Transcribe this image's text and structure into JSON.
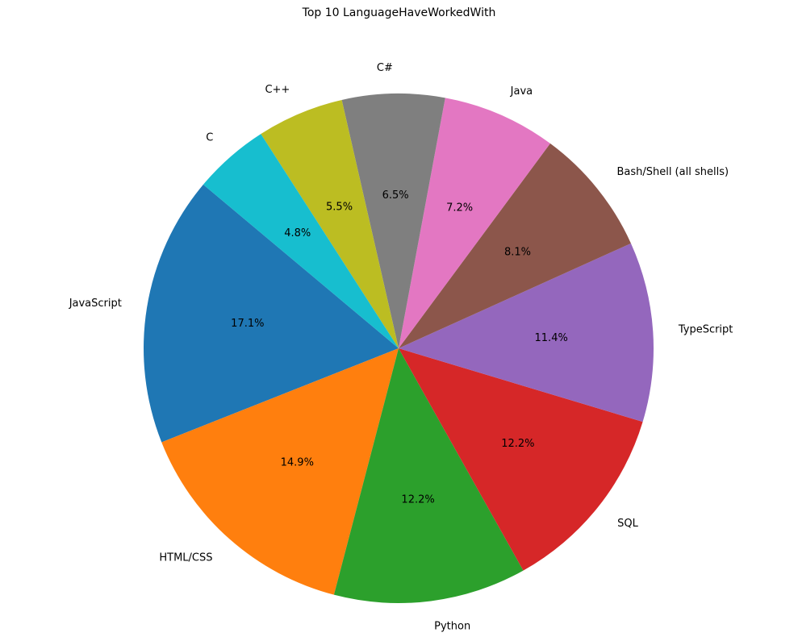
{
  "chart_data": {
    "type": "pie",
    "title": "Top 10 LanguageHaveWorkedWith",
    "start_angle_deg": 140,
    "direction": "counterclockwise",
    "slices": [
      {
        "label": "JavaScript",
        "value": 17.1,
        "pct_label": "17.1%",
        "color": "#1f77b4"
      },
      {
        "label": "HTML/CSS",
        "value": 14.9,
        "pct_label": "14.9%",
        "color": "#ff7f0e"
      },
      {
        "label": "Python",
        "value": 12.2,
        "pct_label": "12.2%",
        "color": "#2ca02c"
      },
      {
        "label": "SQL",
        "value": 12.2,
        "pct_label": "12.2%",
        "color": "#d62728"
      },
      {
        "label": "TypeScript",
        "value": 11.4,
        "pct_label": "11.4%",
        "color": "#9467bd"
      },
      {
        "label": "Bash/Shell (all shells)",
        "value": 8.1,
        "pct_label": "8.1%",
        "color": "#8c564b"
      },
      {
        "label": "Java",
        "value": 7.2,
        "pct_label": "7.2%",
        "color": "#e377c2"
      },
      {
        "label": "C#",
        "value": 6.5,
        "pct_label": "6.5%",
        "color": "#7f7f7f"
      },
      {
        "label": "C++",
        "value": 5.5,
        "pct_label": "5.5%",
        "color": "#bcbd22"
      },
      {
        "label": "C",
        "value": 4.8,
        "pct_label": "4.8%",
        "color": "#17becf"
      }
    ]
  }
}
